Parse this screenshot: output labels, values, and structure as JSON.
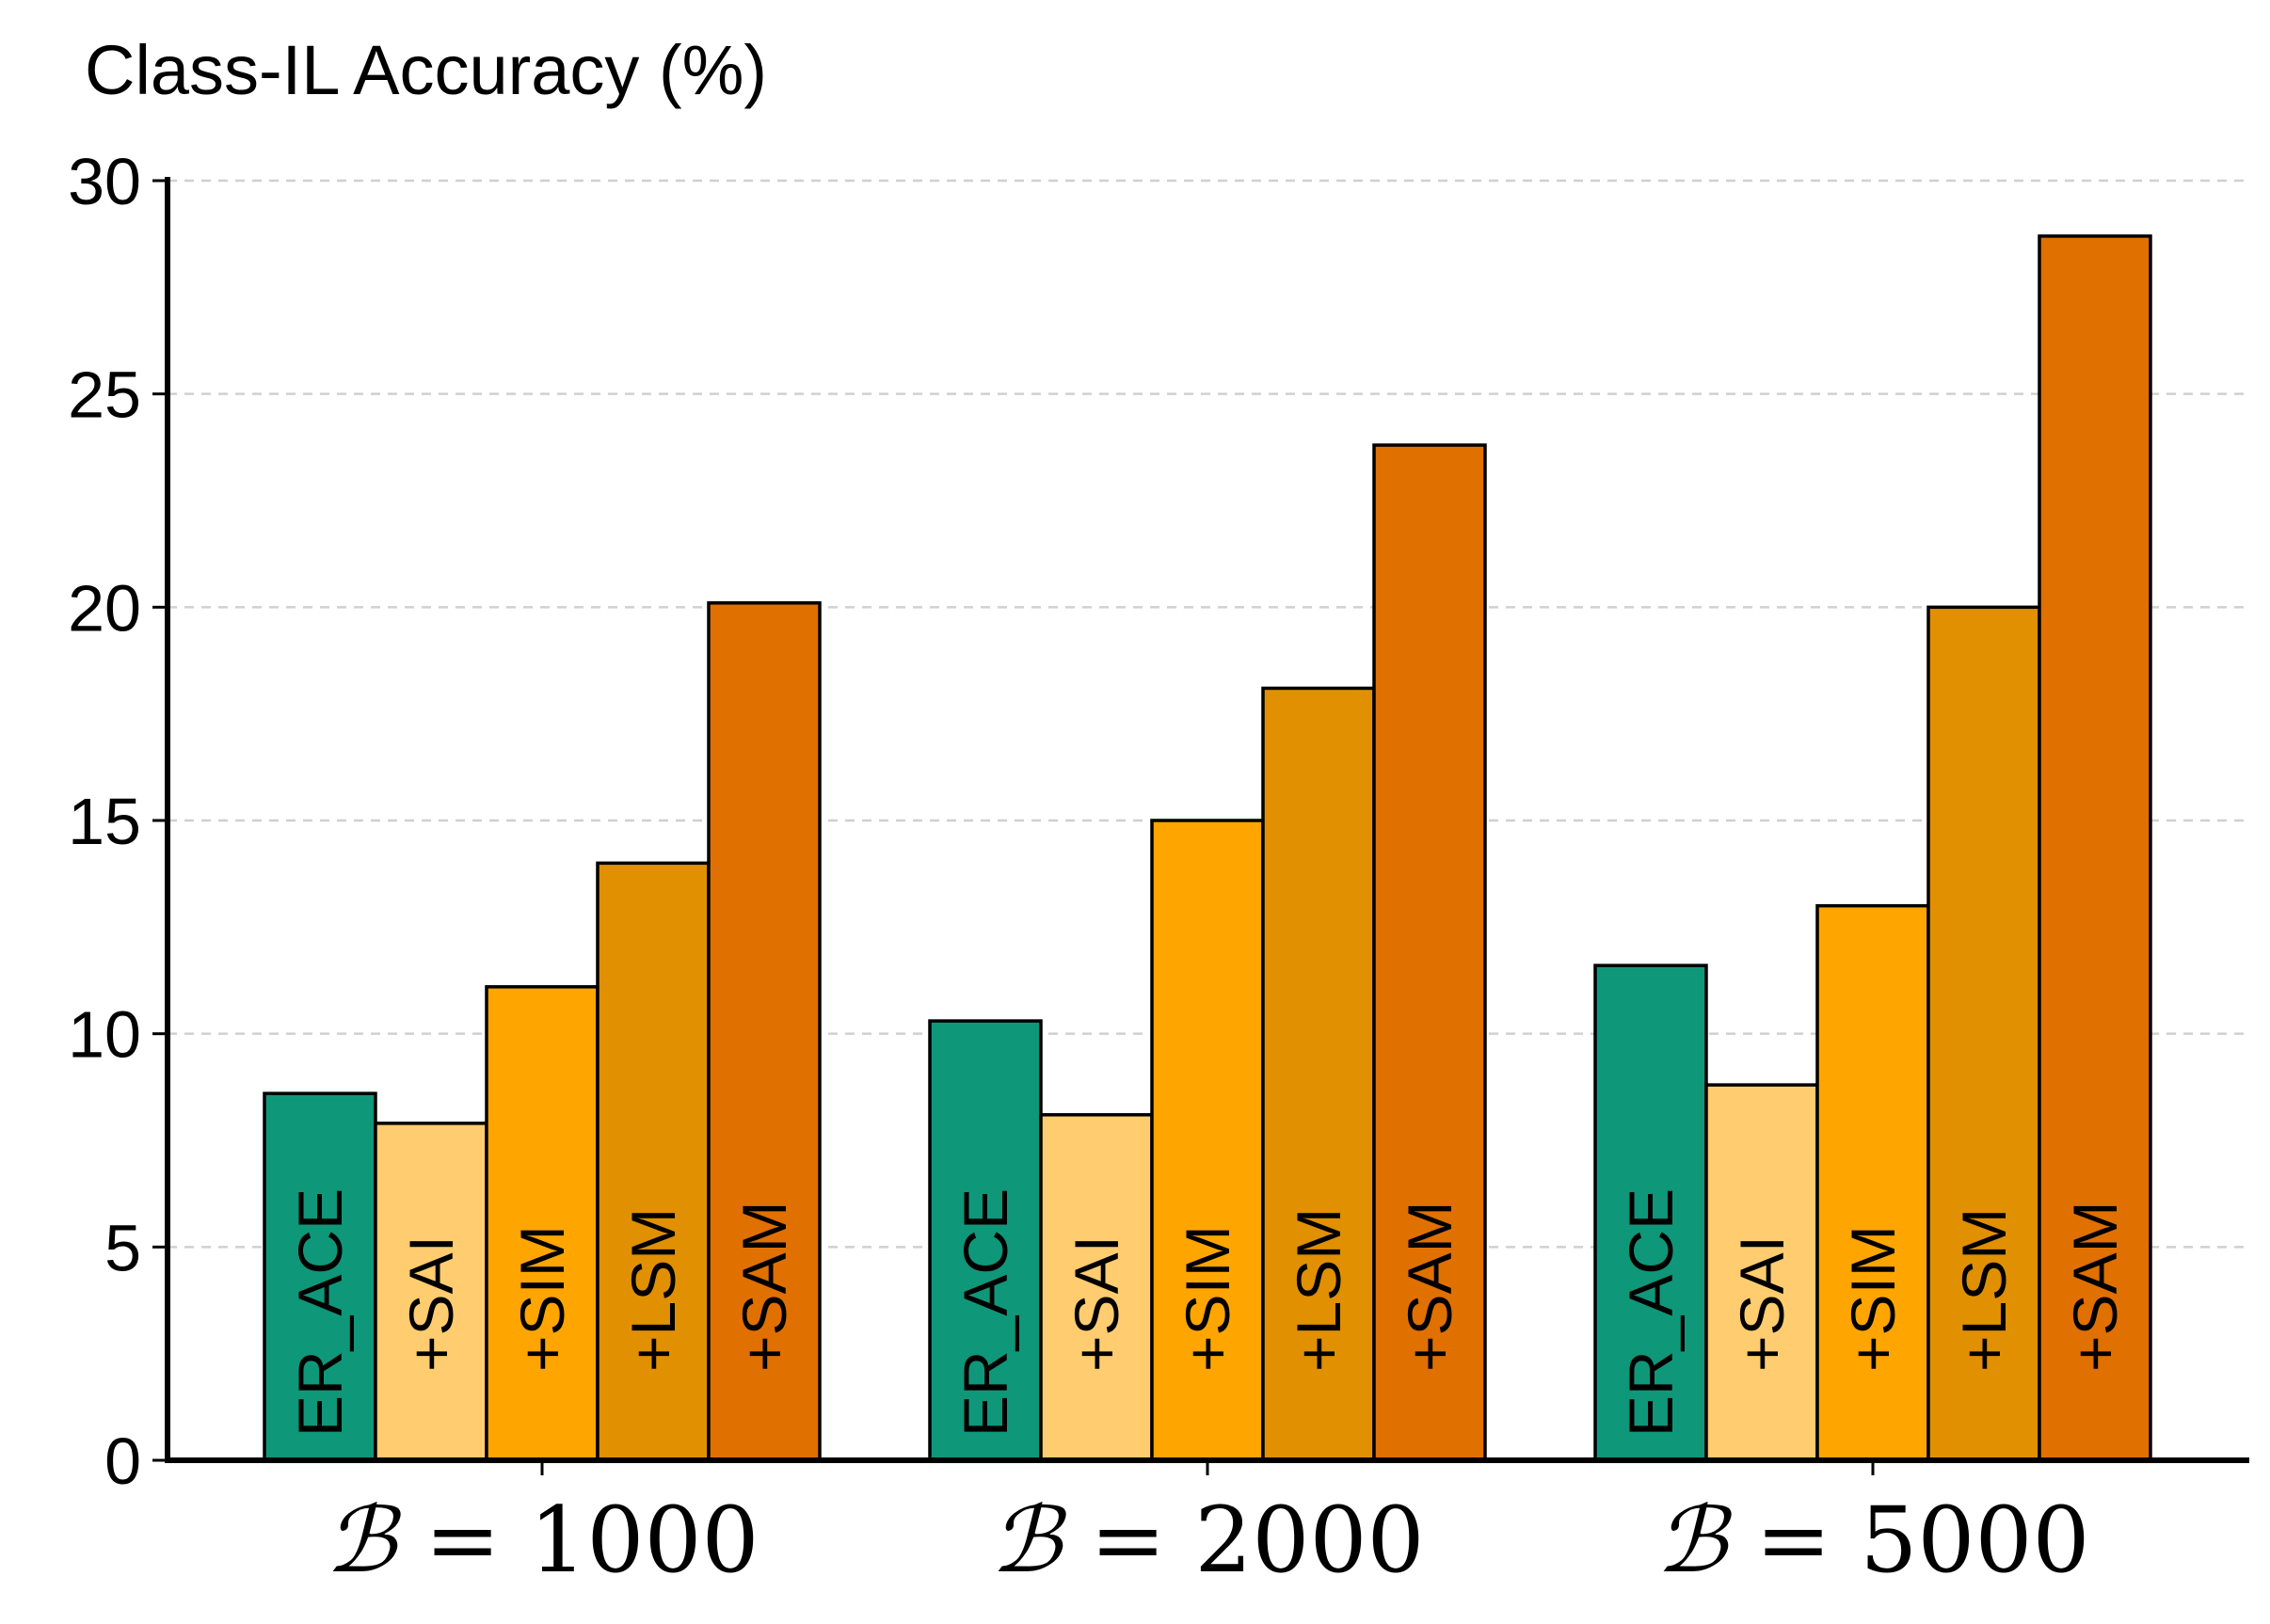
{
  "chart_data": {
    "type": "bar",
    "ylabel": "Class-IL Accuracy (%)",
    "ylim": [
      0,
      30
    ],
    "yticks": [
      0,
      5,
      10,
      15,
      20,
      25,
      30
    ],
    "grid": "horizontal-dashed",
    "categories": [
      {
        "symbol": "ℬ",
        "rest": " = 1000"
      },
      {
        "symbol": "ℬ",
        "rest": " = 2000"
      },
      {
        "symbol": "ℬ",
        "rest": " = 5000"
      }
    ],
    "series": [
      {
        "name": "ER_ACE",
        "color": "#0f977a",
        "values": [
          8.6,
          10.3,
          11.6
        ]
      },
      {
        "name": "+SAI",
        "color": "#ffcc70",
        "values": [
          7.9,
          8.1,
          8.8
        ]
      },
      {
        "name": "+SIM",
        "color": "#ffa500",
        "values": [
          11.1,
          15.0,
          13.0
        ]
      },
      {
        "name": "+LSM",
        "color": "#e09000",
        "values": [
          14.0,
          18.1,
          20.0
        ]
      },
      {
        "name": "+SAM",
        "color": "#e07000",
        "values": [
          20.1,
          23.8,
          28.7
        ]
      }
    ]
  }
}
